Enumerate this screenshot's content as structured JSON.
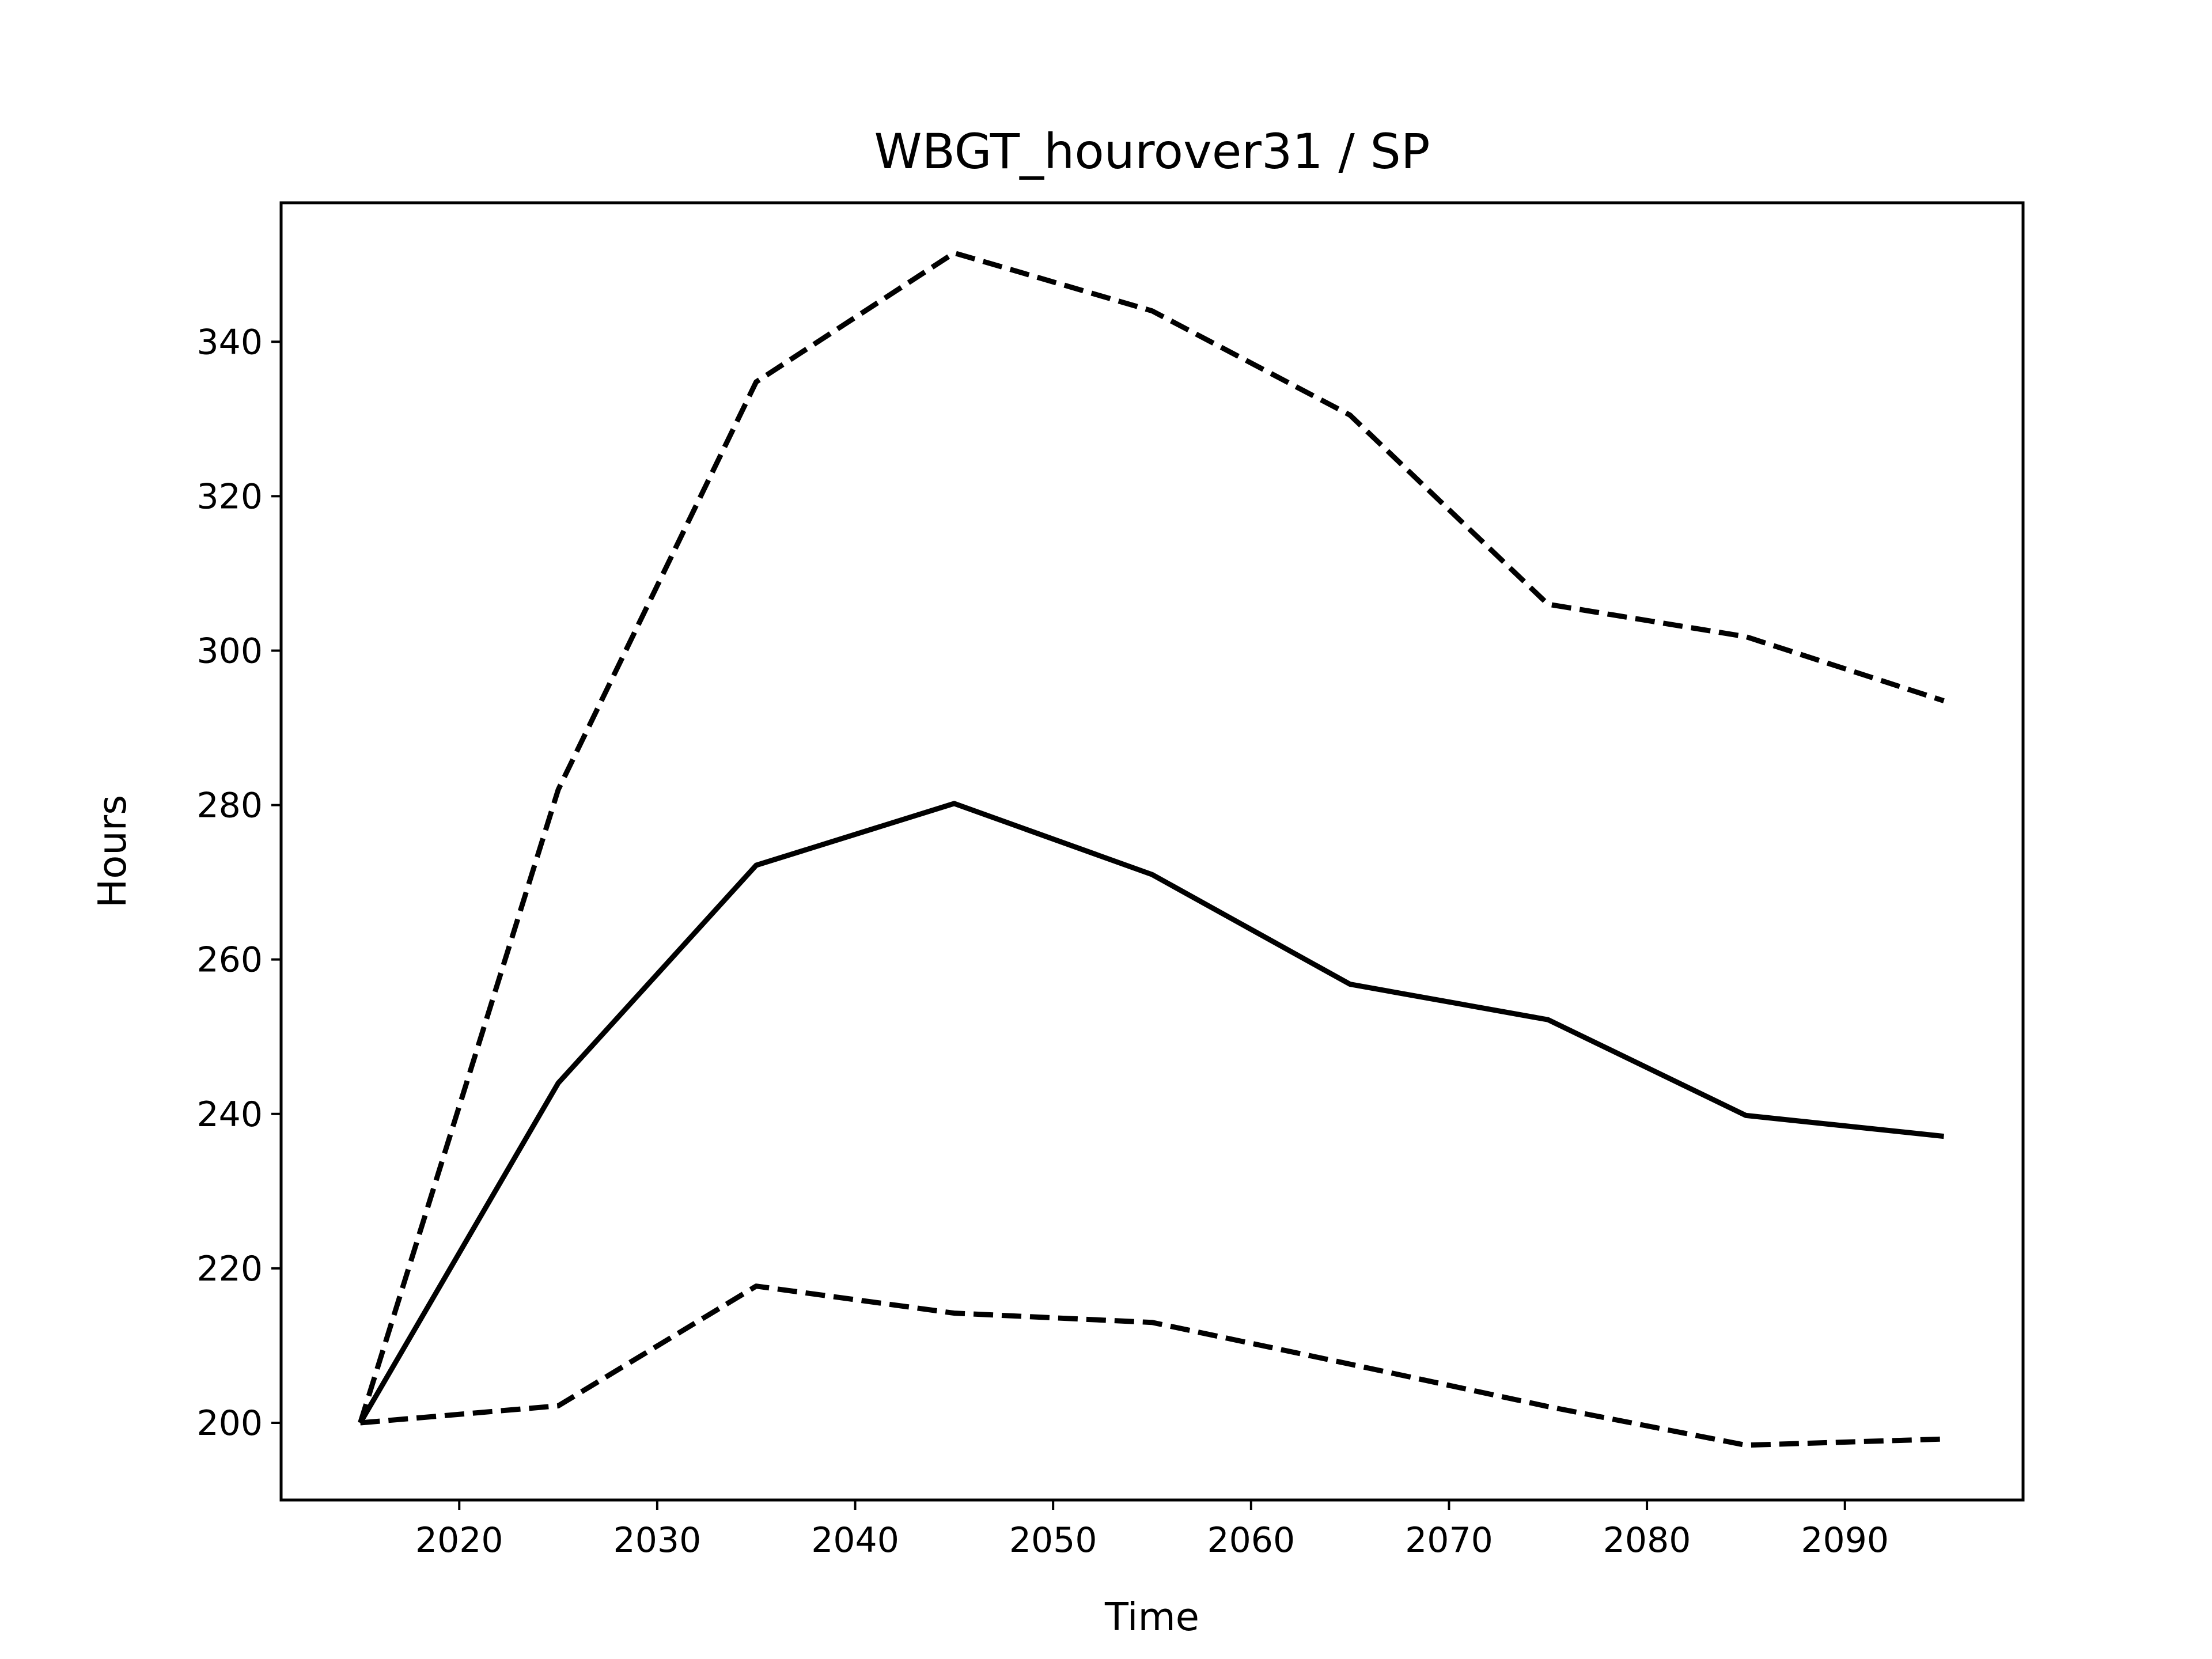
{
  "chart_data": {
    "type": "line",
    "title": "WBGT_hourover31 / SP",
    "xlabel": "Time",
    "ylabel": "Hours",
    "xlim": [
      2011,
      2099
    ],
    "ylim": [
      190,
      358
    ],
    "xticks": [
      2020,
      2030,
      2040,
      2050,
      2060,
      2070,
      2080,
      2090
    ],
    "yticks": [
      200,
      220,
      240,
      260,
      280,
      300,
      320,
      340
    ],
    "grid": false,
    "legend": "none",
    "x": [
      2015,
      2025,
      2035,
      2045,
      2055,
      2065,
      2075,
      2085,
      2095
    ],
    "series": [
      {
        "style": "solid",
        "color": "#000000",
        "values": [
          200,
          244,
          272.2,
          280.2,
          271,
          256.8,
          252.2,
          239.8,
          237.1
        ]
      },
      {
        "style": "dashed",
        "color": "#000000",
        "values": [
          200,
          282,
          334.8,
          351.5,
          344,
          330.5,
          306,
          301.8,
          293.5
        ]
      },
      {
        "style": "dashed",
        "color": "#000000",
        "values": [
          200,
          202.2,
          217.7,
          214.2,
          213,
          207.6,
          202.1,
          197.1,
          197.9
        ]
      }
    ]
  }
}
